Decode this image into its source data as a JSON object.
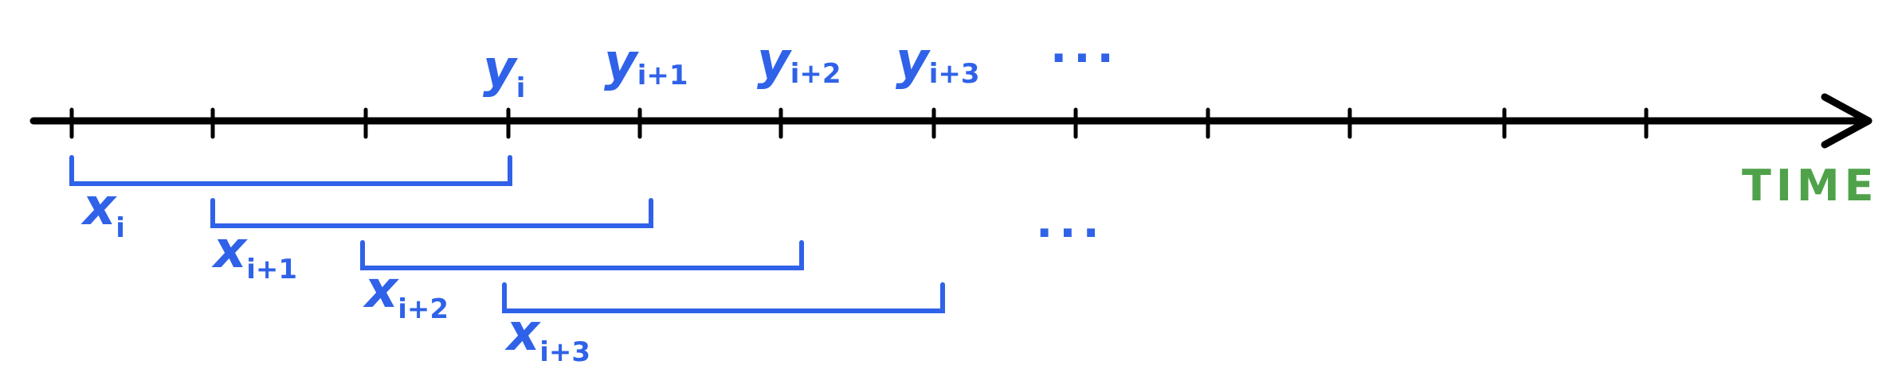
{
  "colors": {
    "axis": "#000000",
    "labels": "#2f62e8",
    "time_label": "#4fa24a"
  },
  "axis_label": "TIME",
  "y_labels": [
    {
      "base": "y",
      "sub": "i"
    },
    {
      "base": "y",
      "sub": "i+1"
    },
    {
      "base": "y",
      "sub": "i+2"
    },
    {
      "base": "y",
      "sub": "i+3"
    }
  ],
  "x_labels": [
    {
      "base": "x",
      "sub": "i"
    },
    {
      "base": "x",
      "sub": "i+1"
    },
    {
      "base": "x",
      "sub": "i+2"
    },
    {
      "base": "x",
      "sub": "i+3"
    }
  ],
  "y_ellipsis": "...",
  "x_ellipsis": "..."
}
